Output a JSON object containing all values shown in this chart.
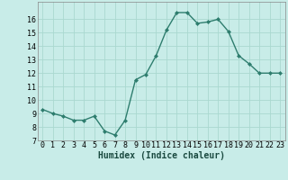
{
  "x": [
    0,
    1,
    2,
    3,
    4,
    5,
    6,
    7,
    8,
    9,
    10,
    11,
    12,
    13,
    14,
    15,
    16,
    17,
    18,
    19,
    20,
    21,
    22,
    23
  ],
  "y": [
    9.3,
    9.0,
    8.8,
    8.5,
    8.5,
    8.8,
    7.7,
    7.4,
    8.5,
    11.5,
    11.9,
    13.3,
    15.2,
    16.5,
    16.5,
    15.7,
    15.8,
    16.0,
    15.1,
    13.3,
    12.7,
    12.0,
    12.0,
    12.0
  ],
  "xlabel": "Humidex (Indice chaleur)",
  "ylim": [
    7,
    17
  ],
  "xlim_min": -0.5,
  "xlim_max": 23.5,
  "yticks": [
    7,
    8,
    9,
    10,
    11,
    12,
    13,
    14,
    15,
    16
  ],
  "xticks": [
    0,
    1,
    2,
    3,
    4,
    5,
    6,
    7,
    8,
    9,
    10,
    11,
    12,
    13,
    14,
    15,
    16,
    17,
    18,
    19,
    20,
    21,
    22,
    23
  ],
  "line_color": "#2e7d6e",
  "marker_color": "#2e7d6e",
  "bg_color": "#c8ece8",
  "grid_color": "#aad8d0",
  "xlabel_color": "#1a4a40",
  "tick_fontsize": 6,
  "xlabel_fontsize": 7
}
